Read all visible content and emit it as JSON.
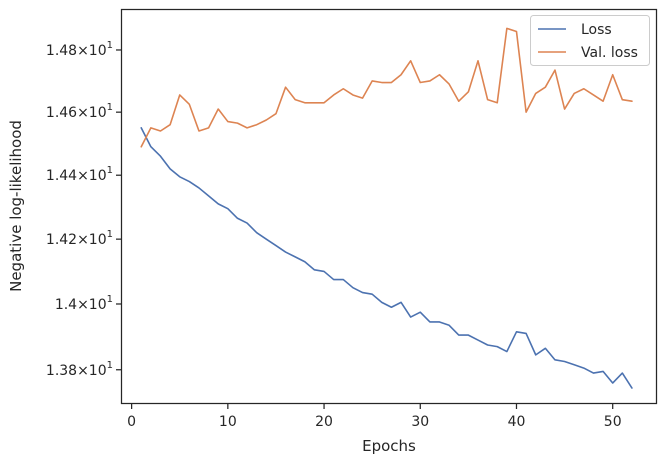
{
  "chart_data": {
    "type": "line",
    "title": "",
    "xlabel": "Epochs",
    "ylabel": "Negative log-likelihood",
    "xlim": [
      -1,
      54.5
    ],
    "ylim": [
      13.7,
      14.93
    ],
    "y_scale": "log",
    "x_ticks": [
      0,
      10,
      20,
      30,
      40,
      50
    ],
    "x_tick_labels": [
      "0",
      "10",
      "20",
      "30",
      "40",
      "50"
    ],
    "y_ticks": [
      13.8,
      14.0,
      14.2,
      14.4,
      14.6,
      14.8
    ],
    "y_tick_labels": [
      {
        "mant": "1.38",
        "exp": "1"
      },
      {
        "mant": "1.4",
        "exp": "1"
      },
      {
        "mant": "1.42",
        "exp": "1"
      },
      {
        "mant": "1.44",
        "exp": "1"
      },
      {
        "mant": "1.46",
        "exp": "1"
      },
      {
        "mant": "1.48",
        "exp": "1"
      }
    ],
    "grid": false,
    "legend_position": "top-right",
    "x": [
      1,
      2,
      3,
      4,
      5,
      6,
      7,
      8,
      9,
      10,
      11,
      12,
      13,
      14,
      15,
      16,
      17,
      18,
      19,
      20,
      21,
      22,
      23,
      24,
      25,
      26,
      27,
      28,
      29,
      30,
      31,
      32,
      33,
      34,
      35,
      36,
      37,
      38,
      39,
      40,
      41,
      42,
      43,
      44,
      45,
      46,
      47,
      48,
      49,
      50,
      51,
      52
    ],
    "series": [
      {
        "name": "Loss",
        "color": "#4c72b0",
        "values": [
          14.55,
          14.49,
          14.46,
          14.42,
          14.395,
          14.38,
          14.36,
          14.335,
          14.31,
          14.295,
          14.265,
          14.25,
          14.22,
          14.2,
          14.18,
          14.16,
          14.145,
          14.13,
          14.105,
          14.1,
          14.075,
          14.075,
          14.05,
          14.035,
          14.03,
          14.005,
          13.99,
          14.005,
          13.96,
          13.975,
          13.945,
          13.945,
          13.935,
          13.905,
          13.905,
          13.89,
          13.875,
          13.87,
          13.855,
          13.915,
          13.91,
          13.845,
          13.865,
          13.83,
          13.825,
          13.815,
          13.805,
          13.79,
          13.795,
          13.76,
          13.79,
          13.745
        ]
      },
      {
        "name": "Val. loss",
        "color": "#dd8452",
        "values": [
          14.49,
          14.55,
          14.54,
          14.56,
          14.655,
          14.625,
          14.54,
          14.55,
          14.61,
          14.57,
          14.565,
          14.55,
          14.56,
          14.575,
          14.595,
          14.68,
          14.64,
          14.63,
          14.63,
          14.63,
          14.655,
          14.675,
          14.655,
          14.645,
          14.7,
          14.695,
          14.695,
          14.72,
          14.765,
          14.695,
          14.7,
          14.72,
          14.69,
          14.635,
          14.665,
          14.765,
          14.64,
          14.63,
          14.87,
          14.86,
          14.6,
          14.66,
          14.68,
          14.735,
          14.61,
          14.66,
          14.675,
          14.655,
          14.635,
          14.72,
          14.64,
          14.635
        ]
      }
    ]
  }
}
